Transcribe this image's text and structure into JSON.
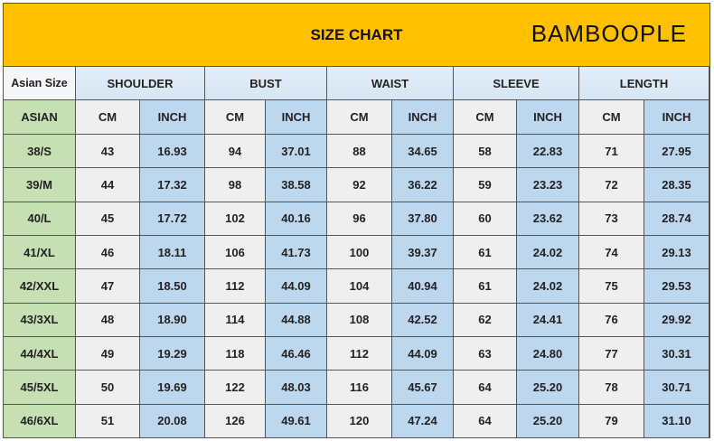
{
  "title": "SIZE CHART",
  "header": {
    "size_label": "Asian Size",
    "groups": [
      "SHOULDER",
      "BUST",
      "WAIST",
      "SLEEVE",
      "LENGTH"
    ],
    "size_sub": "ASIAN",
    "cm": "CM",
    "inch": "INCH"
  },
  "rows": [
    {
      "size": "38/S",
      "values": [
        "43",
        "16.93",
        "94",
        "37.01",
        "88",
        "34.65",
        "58",
        "22.83",
        "71",
        "27.95"
      ]
    },
    {
      "size": "39/M",
      "values": [
        "44",
        "17.32",
        "98",
        "38.58",
        "92",
        "36.22",
        "59",
        "23.23",
        "72",
        "28.35"
      ]
    },
    {
      "size": "40/L",
      "values": [
        "45",
        "17.72",
        "102",
        "40.16",
        "96",
        "37.80",
        "60",
        "23.62",
        "73",
        "28.74"
      ]
    },
    {
      "size": "41/XL",
      "values": [
        "46",
        "18.11",
        "106",
        "41.73",
        "100",
        "39.37",
        "61",
        "24.02",
        "74",
        "29.13"
      ]
    },
    {
      "size": "42/XXL",
      "values": [
        "47",
        "18.50",
        "112",
        "44.09",
        "104",
        "40.94",
        "61",
        "24.02",
        "75",
        "29.53"
      ]
    },
    {
      "size": "43/3XL",
      "values": [
        "48",
        "18.90",
        "114",
        "44.88",
        "108",
        "42.52",
        "62",
        "24.41",
        "76",
        "29.92"
      ]
    },
    {
      "size": "44/4XL",
      "values": [
        "49",
        "19.29",
        "118",
        "46.46",
        "112",
        "44.09",
        "63",
        "24.80",
        "77",
        "30.31"
      ]
    },
    {
      "size": "45/5XL",
      "values": [
        "50",
        "19.69",
        "122",
        "48.03",
        "116",
        "45.67",
        "64",
        "25.20",
        "78",
        "30.71"
      ]
    },
    {
      "size": "46/6XL",
      "values": [
        "51",
        "20.08",
        "126",
        "49.61",
        "120",
        "47.24",
        "64",
        "25.20",
        "79",
        "31.10"
      ]
    }
  ],
  "watermark": "BAMBOOPLE",
  "colors": {
    "title_bg": "#FFC000",
    "size_col": "#C6E0B4",
    "inch_col": "#BDD7EE",
    "cm_col": "#EFEFEF"
  }
}
